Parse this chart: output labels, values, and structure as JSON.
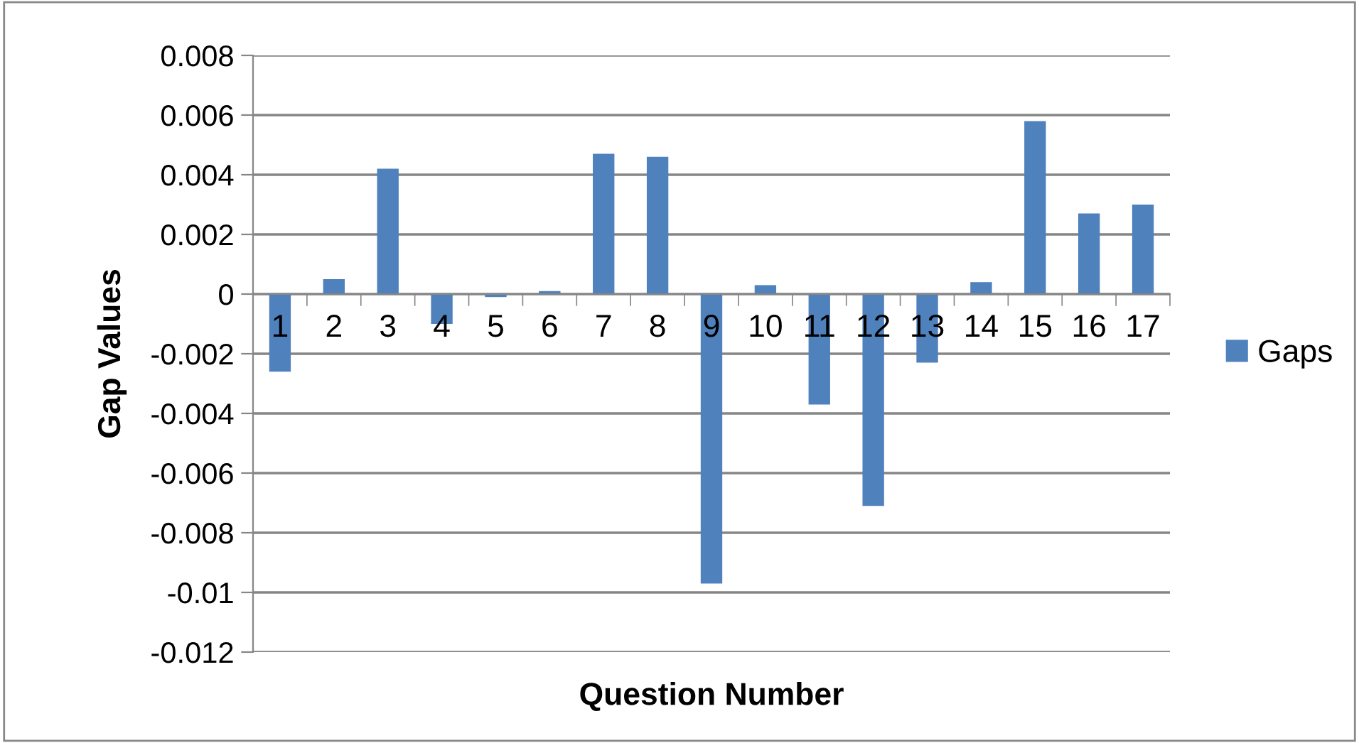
{
  "chart_data": {
    "type": "bar",
    "xlabel": "Question Number",
    "ylabel": "Gap Values",
    "categories": [
      "1",
      "2",
      "3",
      "4",
      "5",
      "6",
      "7",
      "8",
      "9",
      "10",
      "11",
      "12",
      "13",
      "14",
      "15",
      "16",
      "17"
    ],
    "series": [
      {
        "name": "Gaps",
        "color": "#4f81bd",
        "values": [
          -0.0026,
          0.0005,
          0.0042,
          -0.001,
          -0.0001,
          0.0001,
          0.0047,
          0.0046,
          -0.0097,
          0.0003,
          -0.0037,
          -0.0071,
          -0.0023,
          0.0004,
          0.0058,
          0.0027,
          0.003
        ]
      }
    ],
    "ylim": [
      -0.012,
      0.008
    ],
    "yticks": [
      -0.012,
      -0.01,
      -0.008,
      -0.006,
      -0.004,
      -0.002,
      0,
      0.002,
      0.004,
      0.006,
      0.008
    ],
    "grid": "y",
    "legend": "right"
  }
}
